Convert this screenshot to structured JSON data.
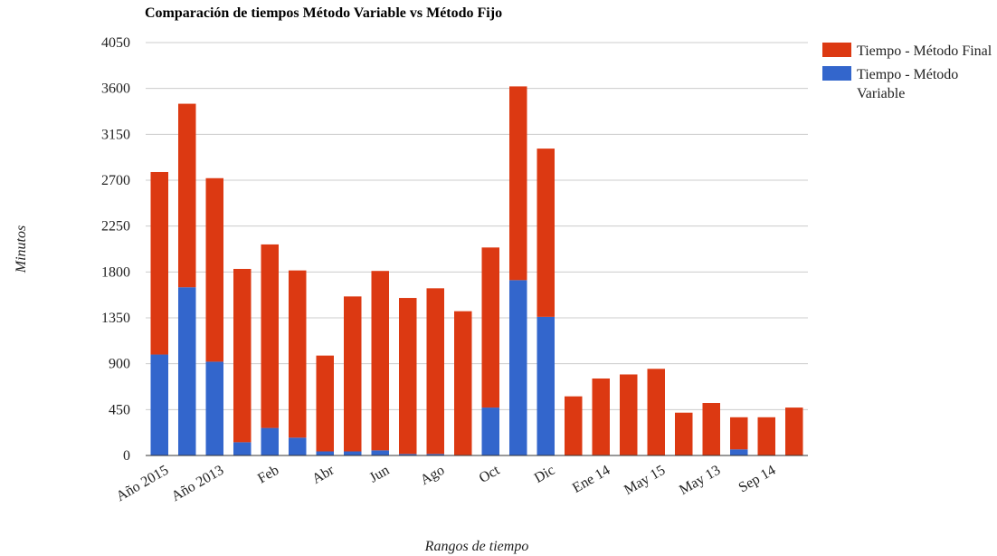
{
  "chart_data": {
    "type": "bar",
    "stacked": true,
    "title": "Comparación de tiempos Método Variable vs Método Fijo",
    "xlabel": "Rangos de tiempo",
    "ylabel": "Minutos",
    "ylim": [
      0,
      4050
    ],
    "yticks": [
      0,
      450,
      900,
      1350,
      1800,
      2250,
      2700,
      3150,
      3600,
      4050
    ],
    "grid": true,
    "legend_position": "right",
    "x_tick_labels": [
      "Año 2015",
      "Año 2013",
      "Feb",
      "Abr",
      "Jun",
      "Ago",
      "Oct",
      "Dic",
      "Ene 14",
      "May 15",
      "May 13",
      "Sep 14"
    ],
    "x_tick_label_positions": [
      0,
      2,
      4,
      6,
      8,
      10,
      12,
      14,
      16,
      18,
      20,
      22
    ],
    "bar_count": 24,
    "series": [
      {
        "name": "Tiempo - Método Variable",
        "color": "#3366cc",
        "values": [
          990,
          1650,
          920,
          130,
          270,
          175,
          40,
          40,
          50,
          15,
          15,
          5,
          470,
          1720,
          1360,
          0,
          5,
          5,
          0,
          0,
          0,
          60,
          0,
          0
        ]
      },
      {
        "name": "Tiempo - Método Final",
        "color": "#dc3912",
        "values": [
          1790,
          1800,
          1800,
          1700,
          1800,
          1640,
          940,
          1520,
          1760,
          1530,
          1625,
          1410,
          1570,
          1900,
          1650,
          580,
          750,
          790,
          850,
          420,
          515,
          315,
          375,
          470
        ]
      }
    ]
  },
  "legend": {
    "items": [
      {
        "label_line1": "Tiempo - Método Final",
        "label_line2": "",
        "color": "#dc3912"
      },
      {
        "label_line1": "Tiempo - Método",
        "label_line2": "Variable",
        "color": "#3366cc"
      }
    ]
  }
}
